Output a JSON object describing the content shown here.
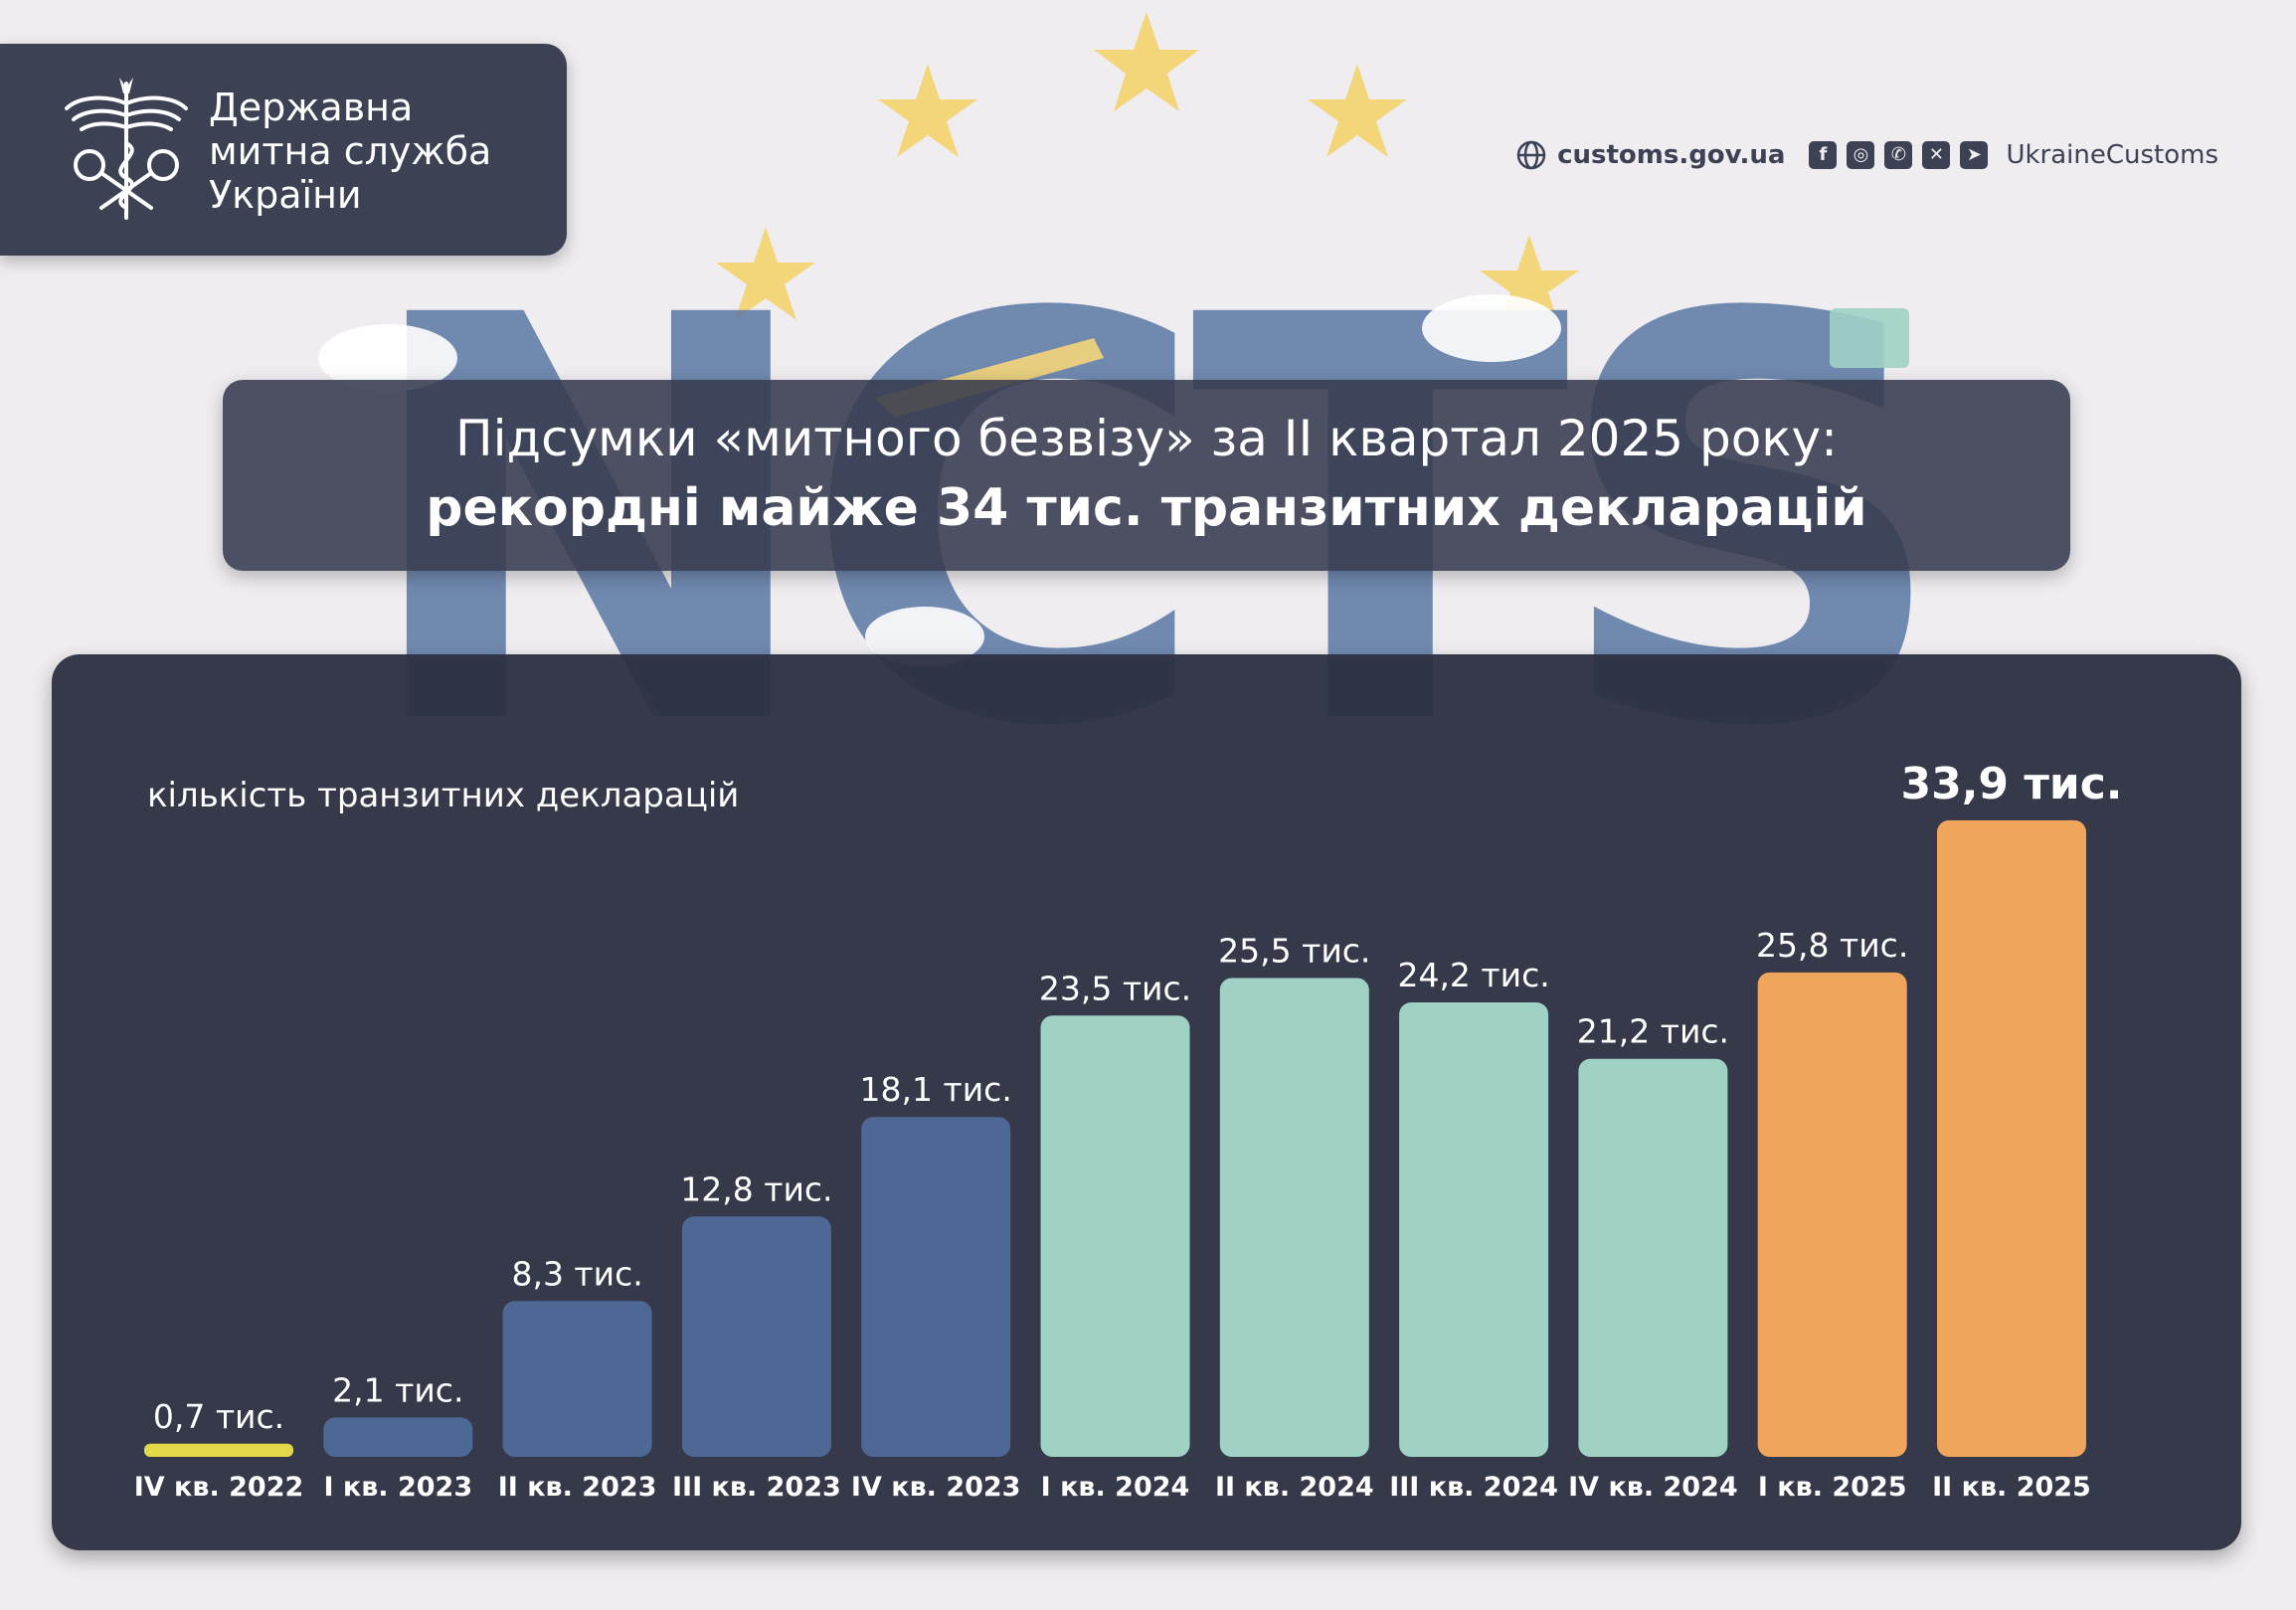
{
  "header": {
    "org_name_lines": [
      "Державна",
      "митна служба",
      "України"
    ],
    "website": "customs.gov.ua",
    "social_icons": [
      "facebook-icon",
      "instagram-icon",
      "whatsapp-icon",
      "x-icon",
      "telegram-icon"
    ],
    "social_handle": "UkraineCustoms"
  },
  "title": {
    "line1": "Підсумки «митного безвізу» за II квартал 2025 року:",
    "line2": "рекордні майже 34 тис. транзитних декларацій"
  },
  "background": {
    "watermark_text": "NCTS"
  },
  "colors": {
    "page_background": "#efedf0",
    "panel": "#2d3142",
    "yellow": "#e2d84a",
    "blue": "#4d6894",
    "mint": "#9fd1c5",
    "orange": "#f0a55c",
    "star": "#f3d57a"
  },
  "chart_data": {
    "type": "bar",
    "ylabel": "кількість транзитних декларацій",
    "categories": [
      "IV кв. 2022",
      "I кв. 2023",
      "II кв. 2023",
      "III кв. 2023",
      "IV кв. 2023",
      "I кв. 2024",
      "II кв. 2024",
      "III кв. 2024",
      "IV кв. 2024",
      "I кв. 2025",
      "II кв. 2025"
    ],
    "values": [
      0.7,
      2.1,
      8.3,
      12.8,
      18.1,
      23.5,
      25.5,
      24.2,
      21.2,
      25.8,
      33.9
    ],
    "value_labels": [
      "0,7 тис.",
      "2,1 тис.",
      "8,3 тис.",
      "12,8 тис.",
      "18,1 тис.",
      "23,5 тис.",
      "25,5 тис.",
      "24,2 тис.",
      "21,2 тис.",
      "25,8 тис.",
      "33,9 тис."
    ],
    "bar_colors": [
      "#e2d84a",
      "#4d6894",
      "#4d6894",
      "#4d6894",
      "#4d6894",
      "#9fd1c5",
      "#9fd1c5",
      "#9fd1c5",
      "#9fd1c5",
      "#f0a55c",
      "#f0a55c"
    ],
    "highlight_index": 10,
    "ylim": [
      0,
      34
    ],
    "grid": false
  }
}
